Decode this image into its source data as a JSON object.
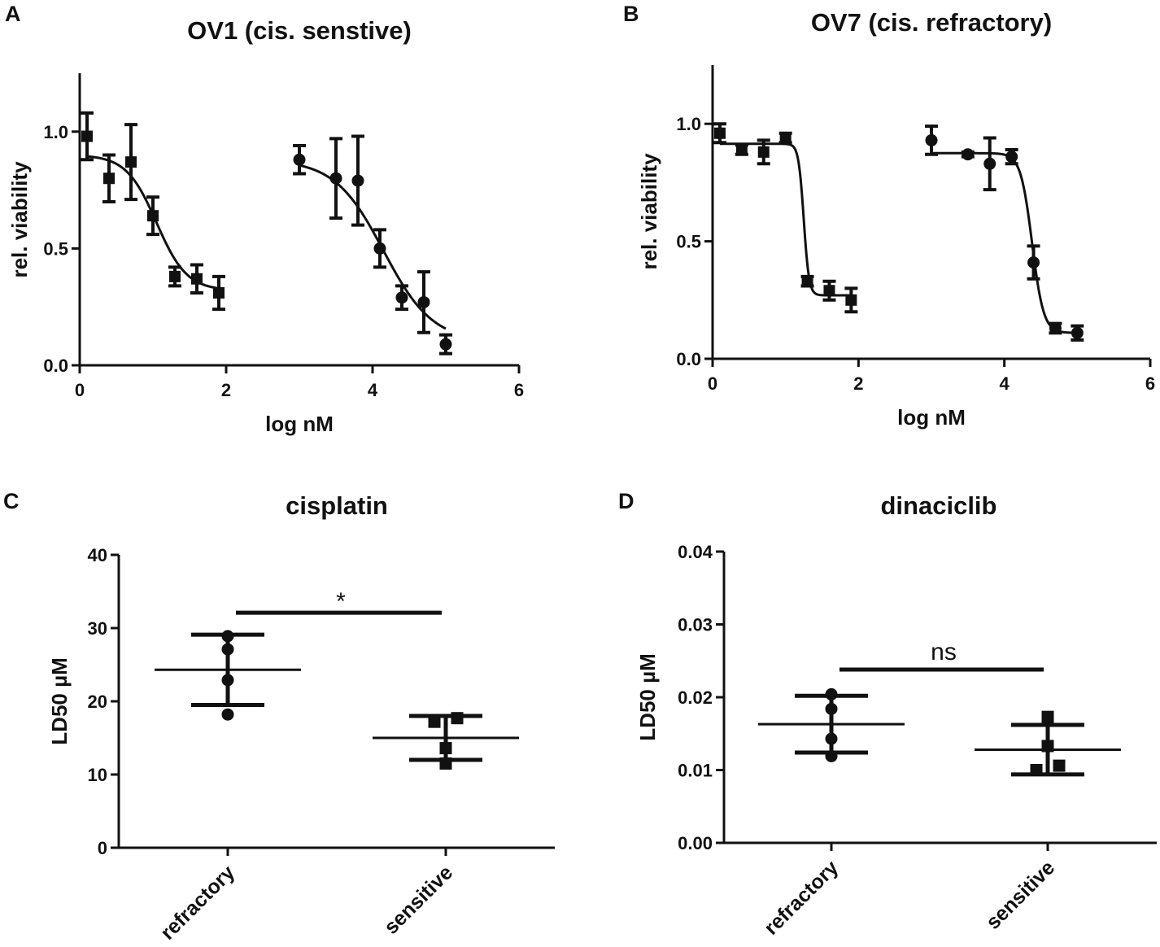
{
  "chart_data": [
    {
      "panel": "A",
      "type": "scatter",
      "title": "OV1 (cis. senstive)",
      "xlabel": "log nM",
      "ylabel": "rel. viability",
      "xlim": [
        0,
        6
      ],
      "ylim": [
        0,
        1.25
      ],
      "xticks": [
        0,
        2,
        4,
        6
      ],
      "yticks": [
        0.0,
        0.5,
        1.0
      ],
      "xtick_labels": [
        "0",
        "2",
        "4",
        "6"
      ],
      "ytick_labels": [
        "0.0",
        "0.5",
        "1.0"
      ],
      "series": [
        {
          "name": "squares",
          "marker": "square",
          "x": [
            0.1,
            0.4,
            0.7,
            1.0,
            1.3,
            1.6,
            1.9
          ],
          "y": [
            0.98,
            0.8,
            0.87,
            0.64,
            0.38,
            0.37,
            0.31
          ],
          "err": [
            0.1,
            0.1,
            0.16,
            0.08,
            0.04,
            0.06,
            0.07
          ],
          "fit": {
            "bottom": 0.32,
            "top": 0.9,
            "logEC50": 1.05,
            "hill": -2.1
          }
        },
        {
          "name": "circles",
          "marker": "circle",
          "x": [
            3.0,
            3.5,
            3.8,
            4.1,
            4.4,
            4.7,
            5.0
          ],
          "y": [
            0.88,
            0.8,
            0.79,
            0.5,
            0.29,
            0.27,
            0.09
          ],
          "err": [
            0.06,
            0.17,
            0.19,
            0.08,
            0.05,
            0.13,
            0.04
          ],
          "fit": {
            "bottom": 0.1,
            "top": 0.88,
            "logEC50": 4.15,
            "hill": -1.3
          }
        }
      ]
    },
    {
      "panel": "B",
      "type": "scatter",
      "title": "OV7 (cis. refractory)",
      "xlabel": "log nM",
      "ylabel": "rel. viability",
      "xlim": [
        0,
        6
      ],
      "ylim": [
        0,
        1.25
      ],
      "xticks": [
        0,
        2,
        4,
        6
      ],
      "yticks": [
        0.0,
        0.5,
        1.0
      ],
      "xtick_labels": [
        "0",
        "2",
        "4",
        "6"
      ],
      "ytick_labels": [
        "0.0",
        "0.5",
        "1.0"
      ],
      "series": [
        {
          "name": "squares",
          "marker": "square",
          "x": [
            0.1,
            0.4,
            0.7,
            1.0,
            1.3,
            1.6,
            1.9
          ],
          "y": [
            0.96,
            0.89,
            0.88,
            0.94,
            0.33,
            0.29,
            0.25
          ],
          "err": [
            0.04,
            0.02,
            0.05,
            0.02,
            0.02,
            0.04,
            0.05
          ],
          "fit": {
            "bottom": 0.27,
            "top": 0.915,
            "logEC50": 1.25,
            "hill": -12
          }
        },
        {
          "name": "circles",
          "marker": "circle",
          "x": [
            3.0,
            3.5,
            3.8,
            4.1,
            4.4,
            4.7,
            5.0
          ],
          "y": [
            0.93,
            0.87,
            0.83,
            0.86,
            0.41,
            0.13,
            0.11
          ],
          "err": [
            0.06,
            0.01,
            0.11,
            0.03,
            0.07,
            0.02,
            0.03
          ],
          "fit": {
            "bottom": 0.11,
            "top": 0.875,
            "logEC50": 4.38,
            "hill": -5.5
          }
        }
      ]
    },
    {
      "panel": "C",
      "type": "scatter",
      "title": "cisplatin",
      "ylabel": "LD50 µM",
      "ylim": [
        0,
        40
      ],
      "yticks": [
        0,
        10,
        20,
        30,
        40
      ],
      "ytick_labels": [
        "0",
        "10",
        "20",
        "30",
        "40"
      ],
      "categories": [
        "refractory",
        "sensitive"
      ],
      "groups": [
        {
          "category": "refractory",
          "marker": "circle",
          "values": [
            28.9,
            27.1,
            22.9,
            18.2
          ],
          "mean": 24.3,
          "sd": 4.8
        },
        {
          "category": "sensitive",
          "marker": "square",
          "values": [
            17.7,
            17.2,
            13.6,
            11.5
          ],
          "mean": 15.0,
          "sd": 3.0
        }
      ],
      "significance": {
        "label": "*",
        "y": 32.1
      }
    },
    {
      "panel": "D",
      "type": "scatter",
      "title": "dinaciclib",
      "ylabel": "LD50 µM",
      "ylim": [
        0,
        0.04
      ],
      "yticks": [
        0.0,
        0.01,
        0.02,
        0.03,
        0.04
      ],
      "ytick_labels": [
        "0.00",
        "0.01",
        "0.02",
        "0.03",
        "0.04"
      ],
      "categories": [
        "refractory",
        "sensitive"
      ],
      "groups": [
        {
          "category": "refractory",
          "marker": "circle",
          "values": [
            0.0204,
            0.0184,
            0.0143,
            0.0119
          ],
          "mean": 0.0163,
          "sd": 0.0039
        },
        {
          "category": "sensitive",
          "marker": "square",
          "values": [
            0.0173,
            0.0133,
            0.0106,
            0.01
          ],
          "mean": 0.0128,
          "sd": 0.0034
        }
      ],
      "significance": {
        "label": "ns",
        "y": 0.0238
      }
    }
  ]
}
